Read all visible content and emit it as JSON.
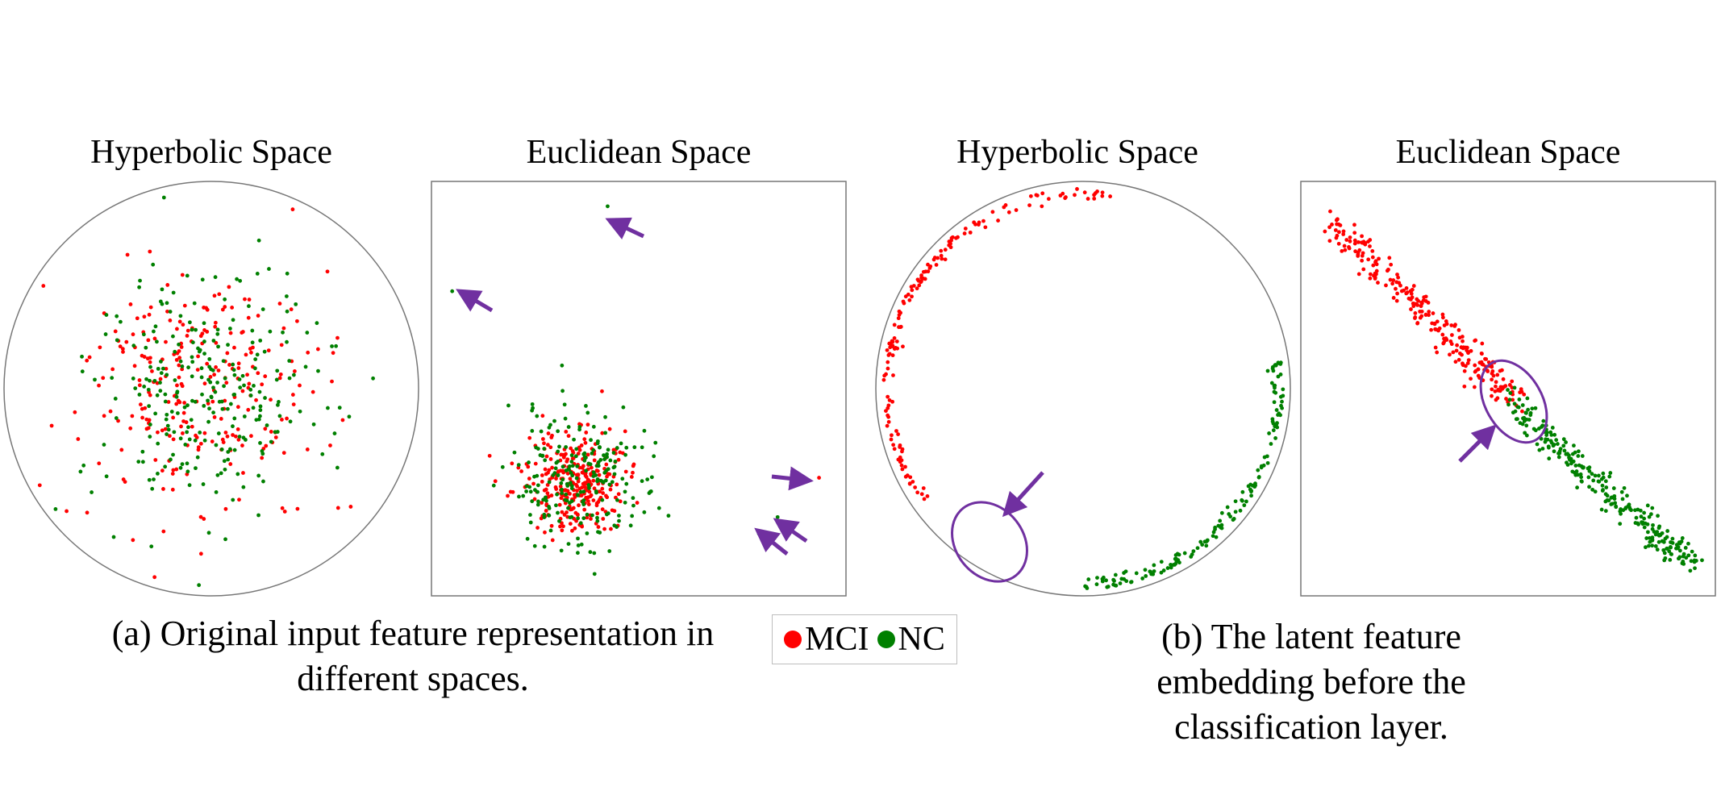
{
  "panel_titles": [
    "Hyperbolic Space",
    "Euclidean Space",
    "Hyperbolic Space",
    "Euclidean Space"
  ],
  "captions": {
    "a": [
      "(a) Original input feature representation in",
      "different spaces."
    ],
    "b": [
      "(b) The latent feature embedding before the",
      "classification layer."
    ]
  },
  "legend": [
    {
      "label": "MCI",
      "color": "#ff0000"
    },
    {
      "label": "NC",
      "color": "#008000"
    }
  ],
  "colors": {
    "MCI": "#ff0000",
    "NC": "#008000",
    "annotation": "#7030a0",
    "frame": "#777777"
  },
  "chart_data": [
    {
      "type": "scatter",
      "title": "Hyperbolic Space",
      "boundary": "poincare-disk",
      "series": [
        {
          "name": "MCI",
          "distribution": "gaussian cloud",
          "center": [
            -0.05,
            0.0
          ],
          "spread": 0.28,
          "count": 260
        },
        {
          "name": "NC",
          "distribution": "gaussian cloud",
          "center": [
            0.0,
            -0.02
          ],
          "spread": 0.3,
          "count": 260
        }
      ]
    },
    {
      "type": "scatter",
      "title": "Euclidean Space",
      "boundary": "square",
      "series": [
        {
          "name": "MCI",
          "distribution": "dense cluster",
          "center": [
            -0.3,
            -0.45
          ],
          "spread": 0.12,
          "count": 300
        },
        {
          "name": "NC",
          "distribution": "dense cluster",
          "center": [
            -0.3,
            -0.45
          ],
          "spread": 0.17,
          "count": 220
        }
      ],
      "outliers": [
        {
          "x": -0.15,
          "y": 0.88,
          "series": "NC"
        },
        {
          "x": -0.9,
          "y": 0.47,
          "series": "NC"
        },
        {
          "x": 0.87,
          "y": -0.43,
          "series": "MCI"
        },
        {
          "x": 0.67,
          "y": -0.62,
          "series": "NC"
        },
        {
          "x": 0.58,
          "y": -0.7,
          "series": "NC"
        }
      ]
    },
    {
      "type": "scatter",
      "title": "Hyperbolic Space",
      "boundary": "poincare-disk",
      "series": [
        {
          "name": "MCI",
          "distribution": "arc near boundary",
          "angle_range_deg": [
            80,
            215
          ],
          "count": 150
        },
        {
          "name": "NC",
          "distribution": "arc near boundary",
          "angle_range_deg": [
            -90,
            8
          ],
          "count": 150
        }
      ]
    },
    {
      "type": "scatter",
      "title": "Euclidean Space",
      "boundary": "square",
      "series": [
        {
          "name": "MCI",
          "distribution": "diagonal band",
          "from": [
            -0.85,
            0.8
          ],
          "to": [
            0.05,
            -0.08
          ],
          "count": 260
        },
        {
          "name": "NC",
          "distribution": "diagonal band",
          "from": [
            0.0,
            -0.05
          ],
          "to": [
            0.87,
            -0.85
          ],
          "count": 260
        }
      ]
    }
  ]
}
